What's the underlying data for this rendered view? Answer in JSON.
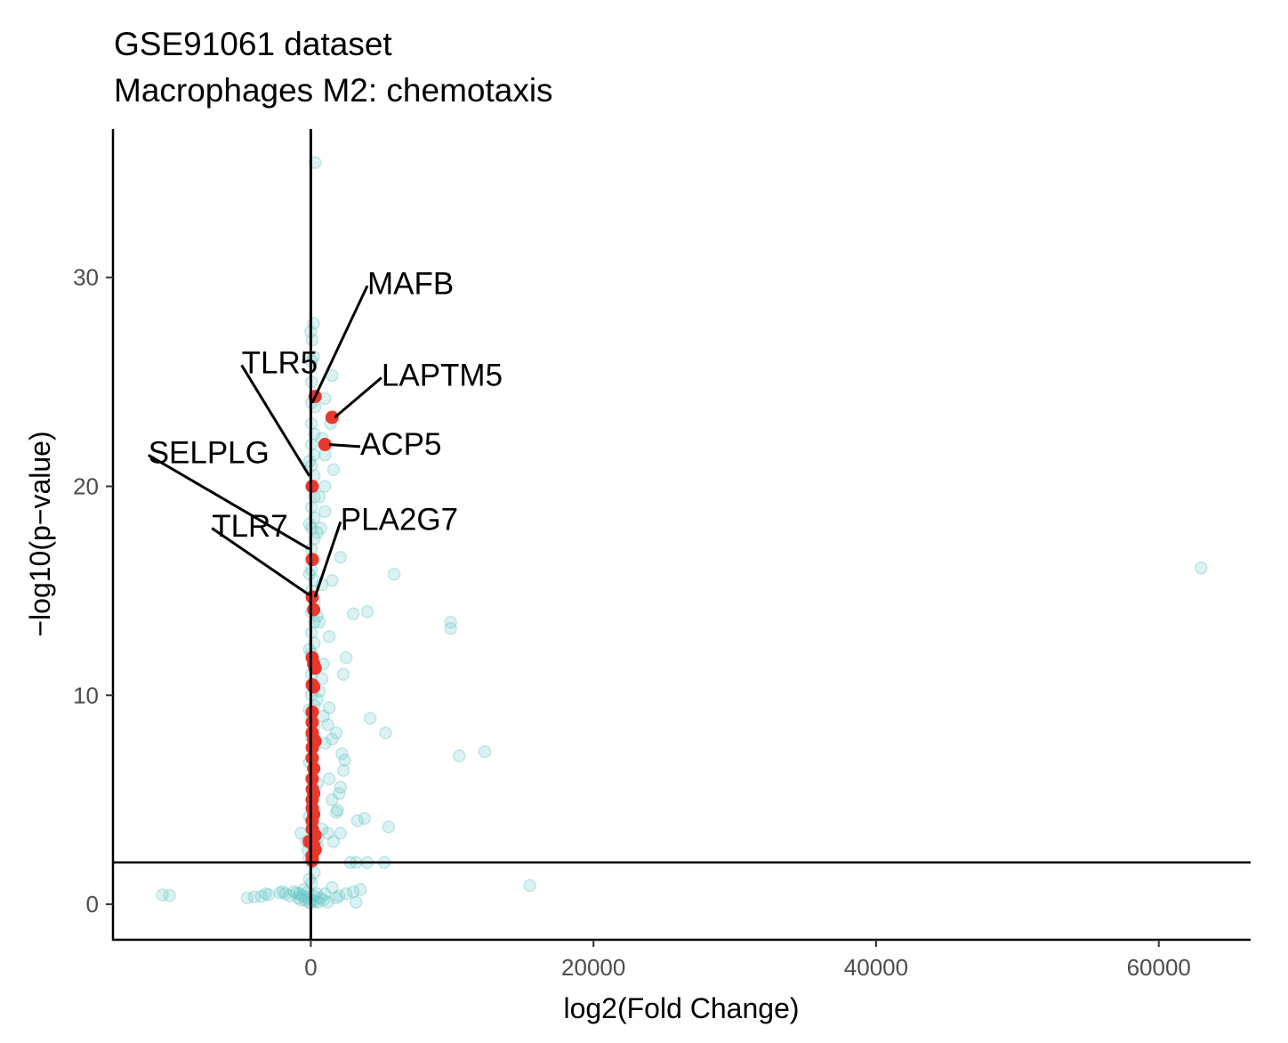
{
  "chart_data": {
    "type": "scatter",
    "title": "GSE91061 dataset",
    "subtitle": "Macrophages M2: chemotaxis",
    "xlabel": "log2(Fold Change)",
    "ylabel": "−log10(p−value)",
    "xlim": [
      -14000,
      66500
    ],
    "ylim": [
      -1.7,
      37.1
    ],
    "x_ticks": [
      {
        "value": 0,
        "label": "0"
      },
      {
        "value": 20000,
        "label": "20000"
      },
      {
        "value": 40000,
        "label": "40000"
      },
      {
        "value": 60000,
        "label": "60000"
      }
    ],
    "y_ticks": [
      {
        "value": 0,
        "label": "0"
      },
      {
        "value": 10,
        "label": "10"
      },
      {
        "value": 20,
        "label": "20"
      },
      {
        "value": 30,
        "label": "30"
      }
    ],
    "grid": false,
    "reference_lines": {
      "vertical_x": 0,
      "horizontal_y": 2
    },
    "colors": {
      "background_points": "#5ec4c4",
      "highlighted_points": "#e8382c",
      "axis": "#000000"
    },
    "series": [
      {
        "points": [
          [
            -10500,
            0.45
          ],
          [
            -10000,
            0.42
          ],
          [
            -4500,
            0.3
          ],
          [
            -4000,
            0.35
          ],
          [
            -3500,
            0.38
          ],
          [
            -3200,
            0.5
          ],
          [
            -3000,
            0.45
          ],
          [
            -2200,
            0.55
          ],
          [
            -2000,
            0.6
          ],
          [
            -1800,
            0.5
          ],
          [
            -1500,
            0.4
          ],
          [
            -1200,
            0.6
          ],
          [
            -1000,
            0.55
          ],
          [
            -900,
            0.3
          ],
          [
            -800,
            0.5
          ],
          [
            -700,
            0.2
          ],
          [
            -600,
            0.4
          ],
          [
            -500,
            0.7
          ],
          [
            -400,
            0.2
          ],
          [
            -300,
            0.35
          ],
          [
            -200,
            0.6
          ],
          [
            -100,
            0.1
          ],
          [
            0,
            0.05
          ],
          [
            100,
            0.2
          ],
          [
            200,
            0.4
          ],
          [
            300,
            0.15
          ],
          [
            400,
            0.5
          ],
          [
            500,
            0.1
          ],
          [
            700,
            0.3
          ],
          [
            900,
            0.2
          ],
          [
            1000,
            0.5
          ],
          [
            1200,
            0.1
          ],
          [
            1500,
            0.8
          ],
          [
            1800,
            0.3
          ],
          [
            2000,
            0.4
          ],
          [
            2500,
            0.5
          ],
          [
            3000,
            0.6
          ],
          [
            3200,
            0.1
          ],
          [
            3500,
            0.7
          ],
          [
            15500,
            0.9
          ],
          [
            -700,
            3.4
          ],
          [
            -300,
            3.0
          ],
          [
            -200,
            2.6
          ],
          [
            -100,
            2.2
          ],
          [
            100,
            2.4
          ],
          [
            300,
            2.8
          ],
          [
            500,
            3.2
          ],
          [
            800,
            3.6
          ],
          [
            1200,
            3.4
          ],
          [
            1600,
            3.0
          ],
          [
            2100,
            3.4
          ],
          [
            2800,
            2.0
          ],
          [
            3200,
            2.0
          ],
          [
            4000,
            2.0
          ],
          [
            5200,
            2.0
          ],
          [
            3300,
            4.0
          ],
          [
            3800,
            4.1
          ],
          [
            5500,
            3.7
          ],
          [
            1800,
            4.4
          ],
          [
            1900,
            4.5
          ],
          [
            1500,
            5.0
          ],
          [
            2000,
            5.3
          ],
          [
            2100,
            5.6
          ],
          [
            1300,
            6.0
          ],
          [
            2300,
            6.4
          ],
          [
            2400,
            6.9
          ],
          [
            2200,
            7.2
          ],
          [
            1000,
            7.7
          ],
          [
            1500,
            7.9
          ],
          [
            1800,
            8.2
          ],
          [
            1200,
            8.6
          ],
          [
            900,
            9.0
          ],
          [
            1300,
            9.4
          ],
          [
            4200,
            8.9
          ],
          [
            5300,
            8.2
          ],
          [
            10500,
            7.1
          ],
          [
            12300,
            7.3
          ],
          [
            600,
            10.2
          ],
          [
            800,
            10.8
          ],
          [
            2300,
            11.0
          ],
          [
            900,
            11.5
          ],
          [
            2500,
            11.8
          ],
          [
            1300,
            12.8
          ],
          [
            600,
            13.5
          ],
          [
            3000,
            13.9
          ],
          [
            4000,
            14.0
          ],
          [
            9900,
            13.5
          ],
          [
            9900,
            13.2
          ],
          [
            800,
            15.3
          ],
          [
            1500,
            15.5
          ],
          [
            5900,
            15.8
          ],
          [
            2100,
            16.6
          ],
          [
            63000,
            16.1
          ],
          [
            700,
            18.0
          ],
          [
            1000,
            18.8
          ],
          [
            600,
            19.5
          ],
          [
            1000,
            20.0
          ],
          [
            1600,
            20.8
          ],
          [
            1000,
            21.5
          ],
          [
            800,
            22.3
          ],
          [
            1400,
            23.0
          ],
          [
            300,
            23.8
          ],
          [
            1000,
            24.2
          ],
          [
            1500,
            25.3
          ],
          [
            200,
            26.2
          ],
          [
            100,
            27.0
          ],
          [
            0,
            27.4
          ],
          [
            200,
            27.8
          ],
          [
            300,
            35.5
          ],
          [
            50,
            1.0
          ],
          [
            50,
            2.0
          ],
          [
            50,
            3.0
          ],
          [
            50,
            4.0
          ],
          [
            50,
            5.0
          ],
          [
            50,
            6.0
          ],
          [
            50,
            7.0
          ],
          [
            50,
            8.0
          ],
          [
            50,
            9.0
          ],
          [
            50,
            10.0
          ],
          [
            50,
            11.0
          ],
          [
            50,
            12.0
          ],
          [
            50,
            13.0
          ],
          [
            50,
            14.0
          ],
          [
            50,
            15.0
          ],
          [
            50,
            16.0
          ],
          [
            50,
            17.0
          ],
          [
            50,
            18.0
          ],
          [
            50,
            19.0
          ],
          [
            50,
            20.0
          ],
          [
            50,
            21.0
          ],
          [
            50,
            22.0
          ],
          [
            50,
            23.0
          ],
          [
            50,
            24.0
          ],
          [
            50,
            25.0
          ],
          [
            50,
            26.0
          ],
          [
            250,
            1.5
          ],
          [
            250,
            2.5
          ],
          [
            250,
            3.5
          ],
          [
            250,
            4.5
          ],
          [
            250,
            5.5
          ],
          [
            250,
            6.5
          ],
          [
            250,
            7.5
          ],
          [
            250,
            8.5
          ],
          [
            250,
            9.5
          ],
          [
            250,
            10.5
          ],
          [
            250,
            11.5
          ],
          [
            250,
            12.5
          ],
          [
            250,
            13.5
          ],
          [
            250,
            14.5
          ],
          [
            250,
            15.5
          ],
          [
            250,
            16.5
          ],
          [
            250,
            17.5
          ],
          [
            250,
            18.5
          ],
          [
            250,
            19.5
          ],
          [
            250,
            20.5
          ],
          [
            250,
            21.5
          ],
          [
            250,
            22.5
          ],
          [
            -100,
            1.2
          ],
          [
            -100,
            4.2
          ],
          [
            -100,
            6.8
          ],
          [
            -100,
            9.3
          ],
          [
            -100,
            12.2
          ],
          [
            -100,
            15.8
          ],
          [
            -100,
            18.2
          ],
          [
            -100,
            21.2
          ],
          [
            450,
            2.8
          ],
          [
            450,
            5.8
          ],
          [
            450,
            9.8
          ],
          [
            450,
            13.8
          ],
          [
            450,
            17.8
          ]
        ]
      },
      {
        "points": [
          [
            1000,
            22.0
          ],
          [
            1500,
            23.3
          ],
          [
            300,
            24.3
          ],
          [
            100,
            20.0
          ],
          [
            100,
            16.5
          ],
          [
            100,
            14.7
          ],
          [
            200,
            14.1
          ],
          [
            100,
            11.8
          ],
          [
            200,
            11.5
          ],
          [
            300,
            11.3
          ],
          [
            100,
            10.5
          ],
          [
            200,
            10.4
          ],
          [
            100,
            9.2
          ],
          [
            100,
            8.7
          ],
          [
            100,
            8.2
          ],
          [
            200,
            7.9
          ],
          [
            300,
            7.8
          ],
          [
            100,
            7.5
          ],
          [
            100,
            7.0
          ],
          [
            200,
            6.5
          ],
          [
            100,
            6.0
          ],
          [
            100,
            5.5
          ],
          [
            200,
            5.3
          ],
          [
            100,
            5.0
          ],
          [
            100,
            4.6
          ],
          [
            200,
            4.3
          ],
          [
            100,
            4.0
          ],
          [
            100,
            3.6
          ],
          [
            300,
            3.3
          ],
          [
            -100,
            3.0
          ],
          [
            200,
            2.8
          ],
          [
            300,
            2.6
          ],
          [
            100,
            2.3
          ],
          [
            100,
            2.1
          ]
        ]
      }
    ],
    "annotations": [
      {
        "text": "MAFB",
        "x": 4000,
        "y": 29.6,
        "point_x": 100,
        "point_y": 24.0
      },
      {
        "text": "TLR5",
        "x": -4900,
        "y": 25.8,
        "point_x": -100,
        "point_y": 20.5
      },
      {
        "text": "LAPTM5",
        "x": 5000,
        "y": 25.2,
        "point_x": 1700,
        "point_y": 23.3
      },
      {
        "text": "SELPLG",
        "x": -11500,
        "y": 21.5,
        "point_x": -100,
        "point_y": 17.0
      },
      {
        "text": "ACP5",
        "x": 3500,
        "y": 21.9,
        "point_x": 1300,
        "point_y": 22.0
      },
      {
        "text": "TLR7",
        "x": -7000,
        "y": 18.0,
        "point_x": -100,
        "point_y": 14.8
      },
      {
        "text": "PLA2G7",
        "x": 2100,
        "y": 18.3,
        "point_x": 300,
        "point_y": 14.7
      }
    ]
  }
}
